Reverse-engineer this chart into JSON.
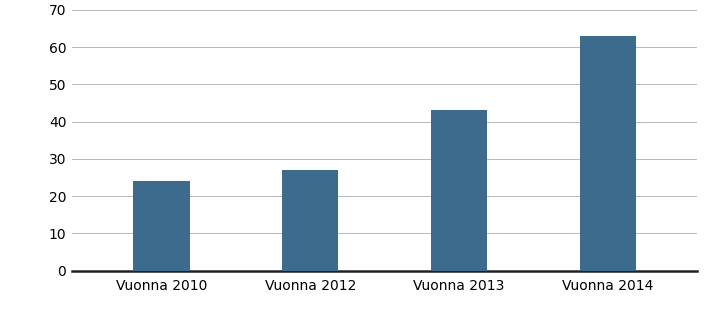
{
  "categories": [
    "Vuonna 2010",
    "Vuonna 2012",
    "Vuonna 2013",
    "Vuonna 2014"
  ],
  "values": [
    24,
    27,
    43,
    63
  ],
  "bar_color": "#3d6b8e",
  "ylim": [
    0,
    70
  ],
  "yticks": [
    0,
    10,
    20,
    30,
    40,
    50,
    60,
    70
  ],
  "background_color": "#ffffff",
  "grid_color": "#b8b8b8",
  "bar_width": 0.38,
  "tick_fontsize": 10,
  "label_fontsize": 10,
  "figsize": [
    7.19,
    3.3
  ],
  "dpi": 100
}
